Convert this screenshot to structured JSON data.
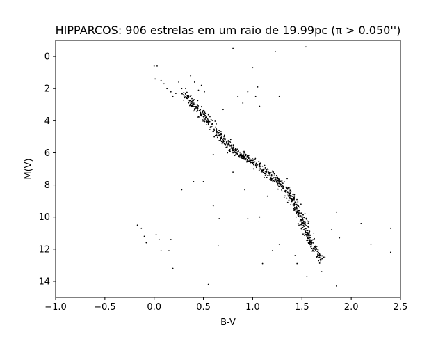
{
  "chart_data": {
    "type": "scatter",
    "title": "HIPPARCOS: 906 estrelas em um raio de 19.99pc (π > 0.050'')",
    "xlabel": "B-V",
    "ylabel": "M(V)",
    "xlim": [
      -1.0,
      2.5
    ],
    "ylim": [
      15.0,
      -1.0
    ],
    "y_inverted": true,
    "grid": false,
    "legend": "none",
    "marker_color": "#000000",
    "xticks": [
      {
        "value": -1.0,
        "label": "−1.0"
      },
      {
        "value": -0.5,
        "label": "−0.5"
      },
      {
        "value": 0.0,
        "label": "0.0"
      },
      {
        "value": 0.5,
        "label": "0.5"
      },
      {
        "value": 1.0,
        "label": "1.0"
      },
      {
        "value": 1.5,
        "label": "1.5"
      },
      {
        "value": 2.0,
        "label": "2.0"
      },
      {
        "value": 2.5,
        "label": "2.5"
      }
    ],
    "yticks": [
      {
        "value": 0,
        "label": "0"
      },
      {
        "value": 2,
        "label": "2"
      },
      {
        "value": 4,
        "label": "4"
      },
      {
        "value": 6,
        "label": "6"
      },
      {
        "value": 8,
        "label": "8"
      },
      {
        "value": 10,
        "label": "10"
      },
      {
        "value": 12,
        "label": "12"
      },
      {
        "value": 14,
        "label": "14"
      }
    ],
    "main_sequence_ridge": [
      [
        0.3,
        2.3
      ],
      [
        0.4,
        3.0
      ],
      [
        0.5,
        3.7
      ],
      [
        0.6,
        4.5
      ],
      [
        0.7,
        5.2
      ],
      [
        0.8,
        5.8
      ],
      [
        0.9,
        6.2
      ],
      [
        1.0,
        6.6
      ],
      [
        1.1,
        7.0
      ],
      [
        1.2,
        7.5
      ],
      [
        1.3,
        8.0
      ],
      [
        1.4,
        8.8
      ],
      [
        1.45,
        9.5
      ],
      [
        1.5,
        10.2
      ],
      [
        1.55,
        11.0
      ],
      [
        1.6,
        11.7
      ],
      [
        1.7,
        12.6
      ]
    ],
    "points": [
      [
        0.0,
        0.6
      ],
      [
        0.03,
        0.6
      ],
      [
        0.01,
        1.4
      ],
      [
        0.07,
        1.5
      ],
      [
        0.1,
        1.7
      ],
      [
        0.13,
        2.0
      ],
      [
        0.17,
        2.2
      ],
      [
        0.19,
        2.5
      ],
      [
        0.22,
        2.3
      ],
      [
        0.25,
        1.6
      ],
      [
        0.28,
        2.0
      ],
      [
        0.32,
        2.0
      ],
      [
        0.37,
        1.2
      ],
      [
        0.41,
        1.6
      ],
      [
        0.45,
        2.1
      ],
      [
        0.48,
        1.8
      ],
      [
        0.51,
        2.2
      ],
      [
        0.34,
        2.5
      ],
      [
        0.38,
        2.8
      ],
      [
        0.43,
        3.2
      ],
      [
        0.47,
        3.6
      ],
      [
        0.52,
        3.9
      ],
      [
        0.55,
        4.2
      ],
      [
        0.58,
        4.4
      ],
      [
        0.61,
        4.6
      ],
      [
        0.63,
        4.2
      ],
      [
        0.66,
        4.9
      ],
      [
        0.68,
        5.1
      ],
      [
        0.71,
        5.4
      ],
      [
        0.74,
        5.6
      ],
      [
        0.77,
        5.9
      ],
      [
        0.8,
        6.0
      ],
      [
        0.83,
        6.1
      ],
      [
        0.86,
        6.2
      ],
      [
        0.89,
        6.3
      ],
      [
        0.92,
        6.4
      ],
      [
        0.95,
        6.5
      ],
      [
        0.98,
        6.6
      ],
      [
        1.01,
        6.7
      ],
      [
        1.04,
        6.9
      ],
      [
        1.07,
        7.0
      ],
      [
        1.1,
        7.1
      ],
      [
        1.13,
        7.3
      ],
      [
        1.16,
        7.4
      ],
      [
        1.19,
        7.6
      ],
      [
        1.22,
        7.8
      ],
      [
        1.25,
        7.9
      ],
      [
        1.28,
        8.0
      ],
      [
        1.31,
        8.2
      ],
      [
        1.34,
        8.4
      ],
      [
        1.37,
        8.7
      ],
      [
        1.4,
        8.9
      ],
      [
        1.42,
        9.2
      ],
      [
        1.44,
        9.4
      ],
      [
        1.46,
        9.7
      ],
      [
        1.48,
        10.0
      ],
      [
        1.5,
        10.2
      ],
      [
        1.52,
        10.4
      ],
      [
        1.54,
        10.7
      ],
      [
        1.56,
        11.0
      ],
      [
        1.58,
        11.3
      ],
      [
        1.6,
        11.6
      ],
      [
        1.63,
        12.0
      ],
      [
        1.66,
        12.4
      ],
      [
        1.69,
        12.8
      ],
      [
        1.72,
        12.5
      ],
      [
        1.62,
        11.0
      ],
      [
        1.47,
        10.5
      ],
      [
        1.44,
        10.0
      ],
      [
        1.49,
        9.2
      ],
      [
        1.53,
        9.8
      ],
      [
        1.57,
        10.3
      ],
      [
        0.85,
        2.5
      ],
      [
        0.9,
        2.9
      ],
      [
        0.95,
        2.2
      ],
      [
        1.03,
        2.5
      ],
      [
        1.05,
        1.9
      ],
      [
        1.0,
        0.7
      ],
      [
        0.8,
        -0.5
      ],
      [
        1.23,
        -0.3
      ],
      [
        1.54,
        -0.6
      ],
      [
        1.07,
        3.1
      ],
      [
        1.27,
        2.5
      ],
      [
        0.7,
        3.3
      ],
      [
        0.6,
        6.1
      ],
      [
        0.8,
        7.2
      ],
      [
        0.92,
        8.3
      ],
      [
        0.4,
        7.8
      ],
      [
        0.28,
        8.3
      ],
      [
        0.5,
        7.8
      ],
      [
        1.35,
        7.6
      ],
      [
        1.32,
        8.8
      ],
      [
        1.15,
        8.7
      ],
      [
        0.95,
        10.1
      ],
      [
        1.07,
        10.0
      ],
      [
        0.6,
        9.3
      ],
      [
        0.66,
        10.1
      ],
      [
        1.85,
        9.7
      ],
      [
        2.1,
        10.4
      ],
      [
        2.4,
        10.7
      ],
      [
        1.8,
        10.8
      ],
      [
        1.88,
        11.3
      ],
      [
        2.2,
        11.7
      ],
      [
        2.4,
        12.2
      ],
      [
        1.7,
        13.4
      ],
      [
        1.85,
        14.3
      ],
      [
        1.55,
        13.7
      ],
      [
        1.45,
        12.9
      ],
      [
        1.43,
        12.4
      ],
      [
        1.27,
        11.7
      ],
      [
        1.2,
        12.1
      ],
      [
        1.1,
        12.9
      ],
      [
        0.65,
        11.8
      ],
      [
        0.55,
        14.2
      ],
      [
        -0.17,
        10.5
      ],
      [
        -0.1,
        11.2
      ],
      [
        -0.08,
        11.6
      ],
      [
        0.02,
        11.1
      ],
      [
        0.05,
        11.4
      ],
      [
        0.07,
        12.1
      ],
      [
        0.15,
        12.1
      ],
      [
        0.17,
        11.4
      ],
      [
        0.19,
        13.2
      ],
      [
        -0.13,
        10.7
      ]
    ]
  }
}
